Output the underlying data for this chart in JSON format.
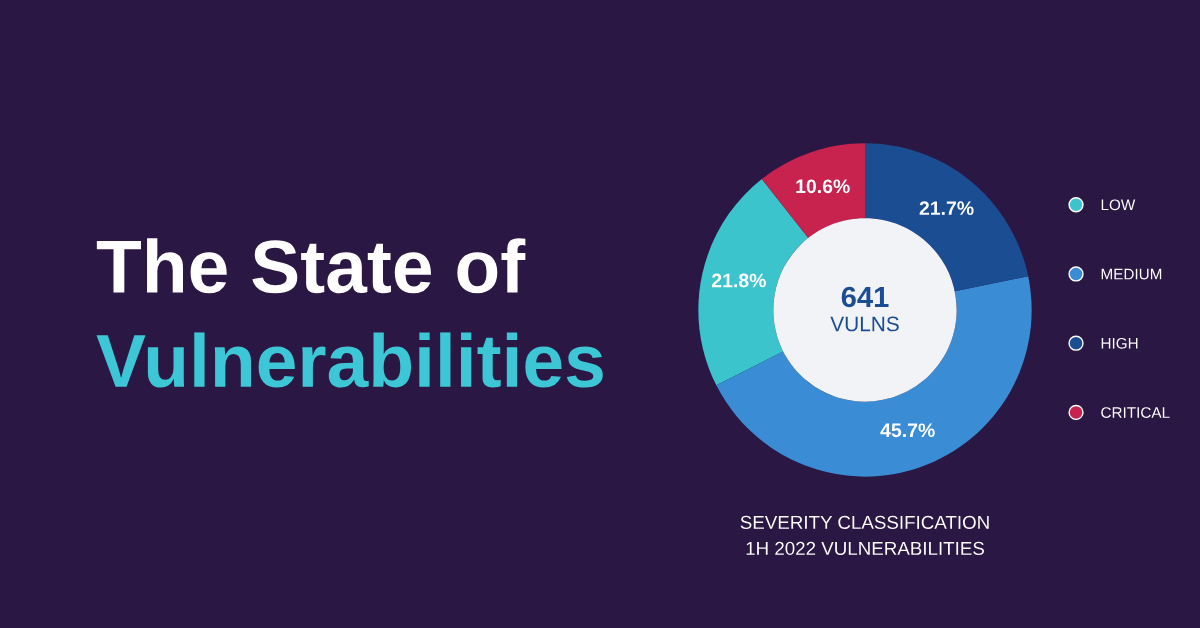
{
  "chart_data": {
    "type": "donut",
    "title": "The State of",
    "subtitle": "Vulnerabilities",
    "categories": [
      "LOW",
      "MEDIUM",
      "HIGH",
      "CRITICAL"
    ],
    "values": [
      21.8,
      45.7,
      21.7,
      10.6
    ],
    "colors": [
      "#3cc4cc",
      "#3a8dd4",
      "#1a4d92",
      "#c8234f"
    ],
    "value_labels": [
      "21.8%",
      "45.7%",
      "21.7%",
      "10.6%"
    ],
    "annotations": [
      "641",
      "VULNS",
      "SEVERITY CLASSIFICATION",
      "1H 2022 VULNERABILITIES"
    ],
    "legend": "right"
  }
}
